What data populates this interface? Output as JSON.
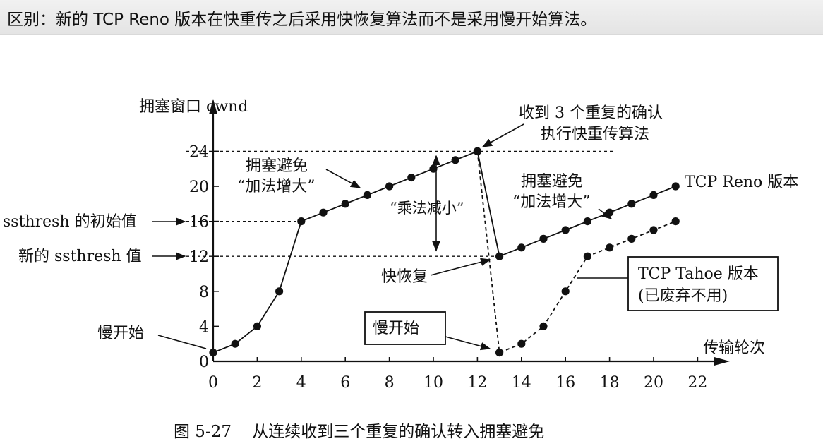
{
  "header": {
    "text": "区别：新的 TCP Reno 版本在快重传之后采用快恢复算法而不是采用慢开始算法。"
  },
  "figure": {
    "caption": "图 5-27    从连续收到三个重复的确认转入拥塞避免"
  },
  "chart_data": {
    "type": "line",
    "ylabel": "拥塞窗口 cwnd",
    "xlabel": "传输轮次",
    "xlim": [
      0,
      22
    ],
    "ylim": [
      0,
      24
    ],
    "x_ticks": [
      "0",
      "2",
      "4",
      "6",
      "8",
      "10",
      "12",
      "14",
      "16",
      "18",
      "20",
      "22"
    ],
    "y_ticks": [
      "0",
      "4",
      "8",
      "12",
      "16",
      "20",
      "24"
    ],
    "series": [
      {
        "name": "TCP Reno 版本",
        "style": "solid",
        "x": [
          0,
          1,
          2,
          3,
          4,
          5,
          6,
          7,
          8,
          9,
          10,
          11,
          12,
          13,
          14,
          15,
          16,
          17,
          18,
          19,
          20,
          21
        ],
        "y": [
          1,
          2,
          4,
          8,
          16,
          17,
          18,
          19,
          20,
          21,
          22,
          23,
          24,
          12,
          13,
          14,
          15,
          16,
          17,
          18,
          19,
          20
        ]
      },
      {
        "name": "TCP Tahoe 版本",
        "style": "dashed",
        "x": [
          12,
          13,
          14,
          15,
          16,
          17,
          18,
          19,
          20,
          21
        ],
        "y": [
          24,
          1,
          2,
          4,
          8,
          12,
          13,
          14,
          15,
          16
        ]
      }
    ],
    "reference_lines": [
      {
        "y": 24,
        "x_end": 18.2
      },
      {
        "y": 16,
        "x_end": 4
      },
      {
        "y": 12,
        "x_end": 13
      }
    ],
    "annotations": {
      "initial_ssthresh": "ssthresh 的初始值",
      "new_ssthresh": "新的 ssthresh 值",
      "slow_start_left": "慢开始",
      "slow_start_boxed": "慢开始",
      "ca1_line1": "拥塞避免",
      "ca1_line2": "“加法增大”",
      "ca2_line1": "拥塞避免",
      "ca2_line2": "“加法增大”",
      "mult_decrease": "“乘法减小”",
      "dup_ack_line1": "收到 3 个重复的确认",
      "dup_ack_line2": "执行快重传算法",
      "fast_recovery": "快恢复",
      "reno_label": "TCP Reno 版本",
      "tahoe_line1": "TCP Tahoe 版本",
      "tahoe_line2": "(已废弃不用)"
    }
  }
}
